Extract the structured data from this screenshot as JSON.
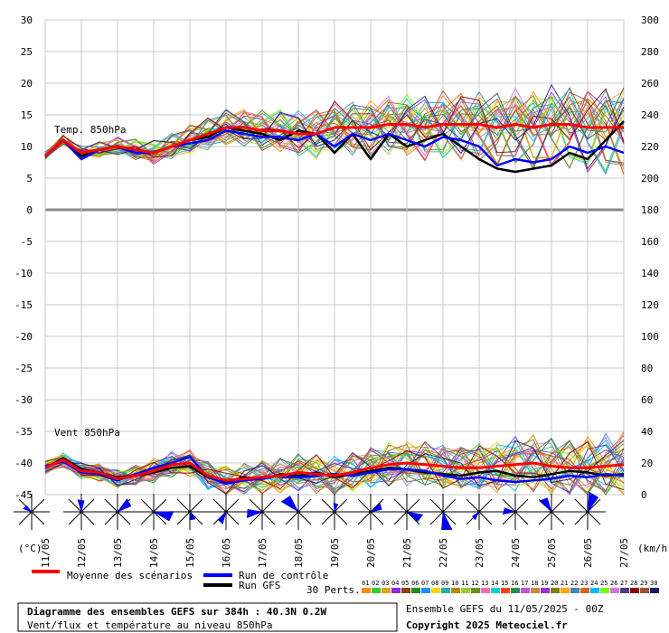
{
  "chart_data": {
    "type": "line",
    "title": "Diagramme des ensembles GEFS sur 384h : 40.3N 0.2W",
    "subtitle": "Vent/flux et température au niveau 850hPa",
    "panel_labels": {
      "temp": "Temp. 850hPa",
      "wind": "Vent 850hPa"
    },
    "left_axis": {
      "label": "(°C)",
      "ticks": [
        30,
        25,
        20,
        15,
        10,
        5,
        0,
        -5,
        -10,
        -15,
        -20,
        -25,
        -30,
        -35,
        -40,
        -45
      ],
      "ylim": [
        -45,
        30
      ]
    },
    "right_axis": {
      "label": "(km/h)",
      "ticks": [
        300,
        280,
        260,
        240,
        220,
        200,
        180,
        160,
        140,
        120,
        100,
        80,
        60,
        40,
        20,
        0
      ],
      "ylim": [
        0,
        300
      ]
    },
    "x_ticks": [
      "11/05",
      "12/05",
      "13/05",
      "14/05",
      "15/05",
      "16/05",
      "17/05",
      "18/05",
      "19/05",
      "20/05",
      "21/05",
      "22/05",
      "23/05",
      "24/05",
      "25/05",
      "26/05",
      "27/05"
    ],
    "grid": true,
    "series": [
      {
        "name": "Moyenne des scénarios",
        "color": "#ff0000",
        "temp": [
          8.5,
          11,
          9,
          9.5,
          10,
          9.5,
          9,
          10,
          11,
          12,
          13,
          13,
          12.5,
          12.5,
          12,
          12,
          13,
          13,
          13,
          13.5,
          13.5,
          13,
          13.5,
          13.5,
          13.5,
          13,
          13.5,
          13,
          13.5,
          13.5,
          13,
          13,
          13
        ],
        "wind": [
          17,
          22,
          15,
          14,
          10,
          12,
          15,
          19,
          20,
          12,
          9,
          10,
          11,
          12,
          14,
          13,
          12,
          14,
          17,
          19,
          20,
          19,
          18,
          17,
          17,
          18,
          19,
          20,
          18,
          17,
          17,
          18,
          19
        ]
      },
      {
        "name": "Run de contrôle",
        "color": "#0000ff",
        "temp": [
          8.5,
          11,
          8,
          9.5,
          10,
          9,
          9,
          10,
          10.5,
          11,
          12.5,
          12,
          11.5,
          11.5,
          11,
          12,
          10,
          12,
          11,
          12,
          11,
          10,
          11.5,
          11,
          10,
          7,
          8,
          7.5,
          8,
          10,
          9,
          10,
          9
        ],
        "wind": [
          18,
          21,
          14,
          13,
          9,
          13,
          17,
          20,
          24,
          11,
          7,
          9,
          10,
          12,
          11,
          12,
          13,
          12,
          14,
          16,
          16,
          15,
          12,
          10,
          11,
          9,
          8,
          9,
          10,
          12,
          11,
          13,
          12
        ]
      },
      {
        "name": "Run GFS",
        "color": "#000000",
        "temp": [
          8.5,
          11,
          8.5,
          9.5,
          10,
          9,
          9,
          10,
          11,
          11.5,
          13,
          12.5,
          12,
          11,
          12.5,
          12,
          9,
          12,
          8,
          12,
          10,
          11,
          12,
          10,
          8,
          6.5,
          6,
          6.5,
          7,
          9,
          8,
          11,
          14
        ],
        "wind": [
          17,
          23,
          16,
          14,
          11,
          12,
          14,
          17,
          18,
          11,
          8,
          11,
          10,
          13,
          12,
          14,
          11,
          13,
          15,
          17,
          16,
          14,
          13,
          12,
          14,
          15,
          12,
          11,
          13,
          15,
          14,
          12,
          13
        ]
      }
    ],
    "perturbation_count_label": "30 Perts.",
    "perturbation_ids": [
      "01",
      "02",
      "03",
      "04",
      "05",
      "06",
      "07",
      "08",
      "09",
      "10",
      "11",
      "12",
      "13",
      "14",
      "15",
      "16",
      "17",
      "18",
      "19",
      "20",
      "21",
      "22",
      "23",
      "24",
      "25",
      "26",
      "27",
      "28",
      "29",
      "30"
    ],
    "perturbation_colors": [
      "#ff8c00",
      "#32cd32",
      "#daa520",
      "#8a2be2",
      "#8b4513",
      "#228b22",
      "#1e90ff",
      "#ffd700",
      "#20b2aa",
      "#b8860b",
      "#9acd32",
      "#6b8e23",
      "#ff69b4",
      "#00ced1",
      "#ff4500",
      "#2e8b57",
      "#ba55d3",
      "#cd853f",
      "#9932cc",
      "#808000",
      "#ffa500",
      "#4682b4",
      "#d2691e",
      "#00bfff",
      "#7cfc00",
      "#da70d6",
      "#483d8b",
      "#8b0000",
      "#a0522d",
      "#191970"
    ],
    "wind_roses": 16,
    "info_line": "Ensemble GEFS du 11/05/2025 - 00Z",
    "copyright": "Copyright 2025 Meteociel.fr"
  }
}
